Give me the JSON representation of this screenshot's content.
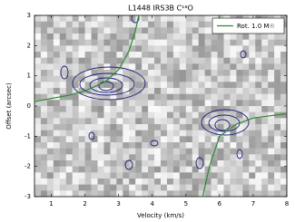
{
  "chart_data": {
    "type": "line",
    "title": "L1448 IRS3B C¹⁸O",
    "x_label": "Velocity (km/s)",
    "y_label": "Offset (arcsec)",
    "x": [
      0.5,
      1.5,
      2.0,
      2.6,
      3.0,
      3.3,
      3.5,
      3.6,
      null,
      5.5,
      5.7,
      6.0,
      6.5,
      7.0,
      8.0
    ],
    "series": [
      {
        "name": "Rot. 1.0 M☉",
        "color": "#2e8b2e",
        "values": [
          0.15,
          0.35,
          0.5,
          0.8,
          1.2,
          1.8,
          2.5,
          3.0,
          null,
          -3.0,
          -2.0,
          -1.0,
          -0.6,
          -0.4,
          -0.25
        ]
      }
    ],
    "xlim": [
      0.5,
      8
    ],
    "xticks": [
      1,
      2,
      3,
      4,
      5,
      6,
      7,
      8
    ],
    "ylim": [
      -3,
      3
    ],
    "yticks": [
      -3,
      -2,
      -1,
      0,
      1,
      2,
      3
    ],
    "legend": "upper right"
  }
}
